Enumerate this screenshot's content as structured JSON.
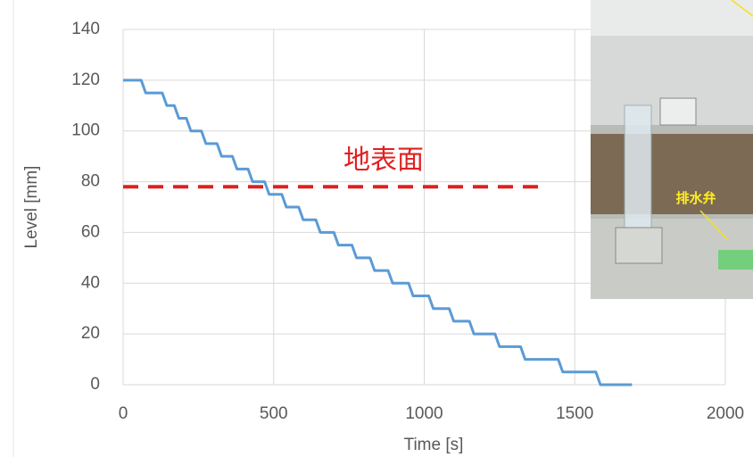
{
  "chart_data": {
    "type": "line",
    "x_label": "Time [s]",
    "y_label": "Level [mm]",
    "x": [
      0,
      60,
      75,
      130,
      145,
      170,
      185,
      210,
      225,
      260,
      275,
      312,
      327,
      363,
      378,
      415,
      430,
      470,
      485,
      527,
      542,
      583,
      598,
      640,
      655,
      700,
      715,
      760,
      775,
      820,
      835,
      880,
      895,
      948,
      963,
      1015,
      1030,
      1083,
      1098,
      1150,
      1165,
      1235,
      1250,
      1320,
      1335,
      1445,
      1460,
      1570,
      1585,
      1690
    ],
    "series": [
      {
        "color": "#5b9bd5",
        "values": [
          120,
          120,
          115,
          115,
          110,
          110,
          105,
          105,
          100,
          100,
          95,
          95,
          90,
          90,
          85,
          85,
          80,
          80,
          75,
          75,
          70,
          70,
          65,
          65,
          60,
          60,
          55,
          55,
          50,
          50,
          45,
          45,
          40,
          40,
          35,
          35,
          30,
          30,
          25,
          25,
          20,
          20,
          15,
          15,
          10,
          10,
          5,
          5,
          0,
          0
        ]
      }
    ],
    "xlim": [
      0,
      2000
    ],
    "xticks": [
      0,
      500,
      1000,
      1500,
      2000
    ],
    "ylim": [
      0,
      140
    ],
    "yticks": [
      0,
      20,
      40,
      60,
      80,
      100,
      120,
      140
    ],
    "grid": true,
    "reference_line": {
      "y": 78,
      "x": [
        0,
        1390
      ],
      "label": "地表面",
      "color": "#e02020"
    }
  },
  "inset": {
    "label": "排水弁"
  }
}
